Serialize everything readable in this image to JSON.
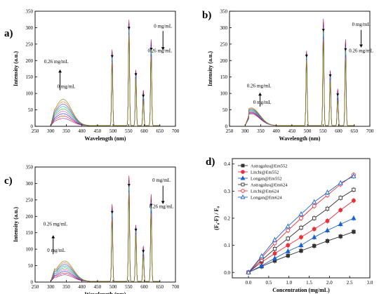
{
  "chart_data": [
    {
      "id": "a",
      "type": "line",
      "panel_label": "a)",
      "xlabel": "Wavelength (nm)",
      "ylabel": "Intensity (a.u.)",
      "xlim": [
        250,
        700
      ],
      "ylim": [
        0,
        350
      ],
      "xticks": [
        250,
        300,
        350,
        400,
        450,
        500,
        550,
        600,
        650,
        700
      ],
      "yticks": [
        0,
        50,
        100,
        150,
        200,
        250,
        300,
        350
      ],
      "curve_count": 9,
      "broad_band": {
        "center": 340,
        "min_peak": 22,
        "max_peak": 80
      },
      "sharp_peaks": [
        {
          "x": 497,
          "top": 232,
          "bottom": 188
        },
        {
          "x": 551,
          "top": 322,
          "bottom": 270
        },
        {
          "x": 573,
          "top": 170,
          "bottom": 140
        },
        {
          "x": 597,
          "top": 108,
          "bottom": 72
        },
        {
          "x": 622,
          "top": 262,
          "bottom": 203
        }
      ],
      "annotations": [
        {
          "text": "0.26 mg/mL",
          "x": 318,
          "y": 192
        },
        {
          "text": "0 mg/mL",
          "x": 350,
          "y": 116
        },
        {
          "text": "0 mg/mL",
          "x": 660,
          "y": 300
        },
        {
          "text": "0.26 mg/mL",
          "x": 650,
          "y": 225
        }
      ],
      "arrows": [
        {
          "x": 330,
          "y1": 110,
          "y2": 172
        },
        {
          "x": 660,
          "y1": 290,
          "y2": 232
        }
      ]
    },
    {
      "id": "b",
      "type": "line",
      "panel_label": "b)",
      "xlabel": "Wavelength (nm)",
      "ylabel": "Intensity (a.u.)",
      "xlim": [
        250,
        700
      ],
      "ylim": [
        0,
        350
      ],
      "xticks": [
        250,
        300,
        350,
        400,
        450,
        500,
        550,
        600,
        650,
        700
      ],
      "yticks": [
        0,
        50,
        100,
        150,
        200,
        250,
        300,
        350
      ],
      "curve_count": 9,
      "broad_band": {
        "center": 320,
        "min_peak": 36,
        "max_peak": 54
      },
      "sharp_peaks": [
        {
          "x": 497,
          "top": 228,
          "bottom": 195
        },
        {
          "x": 551,
          "top": 325,
          "bottom": 255
        },
        {
          "x": 573,
          "top": 168,
          "bottom": 135
        },
        {
          "x": 597,
          "top": 112,
          "bottom": 75
        },
        {
          "x": 622,
          "top": 262,
          "bottom": 200
        }
      ],
      "annotations": [
        {
          "text": "0.26 mg/mL",
          "x": 345,
          "y": 118
        },
        {
          "text": "0 mg/mL",
          "x": 355,
          "y": 68
        },
        {
          "text": "0 mg/mL",
          "x": 672,
          "y": 305
        },
        {
          "text": "0.26 mg/mL",
          "x": 672,
          "y": 225
        }
      ],
      "arrows": [
        {
          "x": 348,
          "y1": 60,
          "y2": 102
        },
        {
          "x": 672,
          "y1": 293,
          "y2": 240
        }
      ]
    },
    {
      "id": "c",
      "type": "line",
      "panel_label": "c)",
      "xlabel": "Wavelength (nm)",
      "ylabel": "Intensity (a.u.)",
      "xlim": [
        250,
        700
      ],
      "ylim": [
        0,
        350
      ],
      "xticks": [
        250,
        300,
        350,
        400,
        450,
        500,
        550,
        600,
        650,
        700
      ],
      "yticks": [
        0,
        50,
        100,
        150,
        200,
        250,
        300,
        350
      ],
      "curve_count": 9,
      "broad_band": {
        "center": 345,
        "min_peak": 20,
        "max_peak": 62
      },
      "sharp_peaks": [
        {
          "x": 497,
          "top": 235,
          "bottom": 185
        },
        {
          "x": 551,
          "top": 322,
          "bottom": 262
        },
        {
          "x": 573,
          "top": 172,
          "bottom": 140
        },
        {
          "x": 597,
          "top": 108,
          "bottom": 74
        },
        {
          "x": 622,
          "top": 265,
          "bottom": 198
        }
      ],
      "annotations": [
        {
          "text": "0.26 mg/mL",
          "x": 315,
          "y": 172
        },
        {
          "text": "0 mg/mL",
          "x": 318,
          "y": 92
        },
        {
          "text": "0 mg/mL",
          "x": 655,
          "y": 305
        },
        {
          "text": "0.26 mg/mL",
          "x": 655,
          "y": 225
        }
      ],
      "arrows": [
        {
          "x": 308,
          "y1": 85,
          "y2": 142
        },
        {
          "x": 660,
          "y1": 293,
          "y2": 238
        }
      ]
    },
    {
      "id": "d",
      "type": "scatter",
      "panel_label": "d)",
      "xlabel": "Concentration (mg/mL)",
      "ylabel": "(F₀-F) / F₀",
      "xlim": [
        -0.4,
        3.0
      ],
      "ylim": [
        -0.02,
        0.42
      ],
      "xticks": [
        0.0,
        0.5,
        1.0,
        1.5,
        2.0,
        2.5,
        3.0
      ],
      "yticks": [
        0.0,
        0.1,
        0.2,
        0.3,
        0.4
      ],
      "x": [
        0.0,
        0.325,
        0.65,
        0.975,
        1.3,
        1.625,
        1.95,
        2.275,
        2.6
      ],
      "series": [
        {
          "name": "Astragalus@Em552",
          "color": "#333333",
          "marker": "square",
          "filled": true,
          "values": [
            0.0,
            0.022,
            0.043,
            0.062,
            0.08,
            0.098,
            0.116,
            0.133,
            0.15
          ]
        },
        {
          "name": "Litchi@Em552",
          "color": "#e8303a",
          "marker": "circle",
          "filled": true,
          "values": [
            0.0,
            0.038,
            0.07,
            0.1,
            0.13,
            0.16,
            0.19,
            0.23,
            0.265
          ]
        },
        {
          "name": "Longan@Em552",
          "color": "#1a5fd1",
          "marker": "triangle",
          "filled": true,
          "values": [
            0.0,
            0.025,
            0.052,
            0.078,
            0.1,
            0.13,
            0.155,
            0.178,
            0.2
          ]
        },
        {
          "name": "Astragalus@Em624",
          "color": "#333333",
          "marker": "square",
          "filled": false,
          "values": [
            0.0,
            0.045,
            0.087,
            0.125,
            0.165,
            0.2,
            0.235,
            0.275,
            0.305
          ]
        },
        {
          "name": "Litchi@Em624",
          "color": "#e8303a",
          "marker": "circle",
          "filled": false,
          "values": [
            0.0,
            0.055,
            0.108,
            0.155,
            0.2,
            0.245,
            0.285,
            0.325,
            0.36
          ]
        },
        {
          "name": "Longan@Em624",
          "color": "#1a5fd1",
          "marker": "triangle",
          "filled": false,
          "values": [
            0.0,
            0.06,
            0.12,
            0.17,
            0.215,
            0.26,
            0.295,
            0.33,
            0.355
          ]
        }
      ]
    }
  ]
}
